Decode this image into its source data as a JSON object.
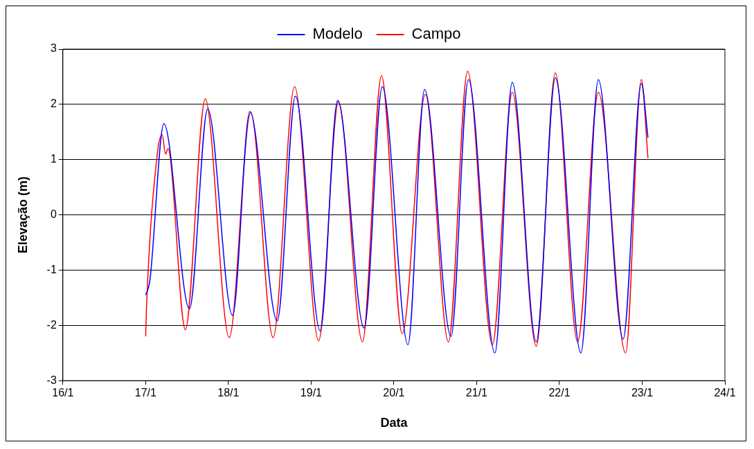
{
  "chart_data": {
    "type": "line",
    "xlabel": "Data",
    "ylabel": "Elevação (m)",
    "xlim": [
      "--01-16",
      "--01-24"
    ],
    "xticks": [
      {
        "value": "--01-16",
        "label": "16/1"
      },
      {
        "value": "--01-17",
        "label": "17/1"
      },
      {
        "value": "--01-18",
        "label": "18/1"
      },
      {
        "value": "--01-19",
        "label": "19/1"
      },
      {
        "value": "--01-20",
        "label": "20/1"
      },
      {
        "value": "--01-21",
        "label": "21/1"
      },
      {
        "value": "--01-22",
        "label": "22/1"
      },
      {
        "value": "--01-23",
        "label": "23/1"
      },
      {
        "value": "--01-24",
        "label": "24/1"
      }
    ],
    "ylim": [
      -3,
      3
    ],
    "yticks": [
      -3,
      -2,
      -1,
      0,
      1,
      2,
      3
    ],
    "grid": "y",
    "legend": "top",
    "marker": "none",
    "line_style": "solid",
    "series": [
      {
        "name": "Modelo",
        "color": "#0000ff",
        "x": [
          "--01-17T00:00",
          "--01-17T01:12",
          "--01-17T05:17",
          "--01-17T12:43",
          "--01-17T18:00",
          "--01-18T01:12",
          "--01-18T06:14",
          "--01-18T14:10",
          "--01-18T19:26",
          "--01-19T02:38",
          "--01-19T07:41",
          "--01-19T15:22",
          "--01-19T20:38",
          "--01-20T04:05",
          "--01-20T08:53",
          "--01-20T16:34",
          "--01-20T21:36",
          "--01-21T05:17",
          "--01-21T10:19",
          "--01-21T17:17",
          "--01-21T22:48",
          "--01-22T06:14",
          "--01-22T11:17",
          "--01-22T18:29",
          "--01-22T23:46",
          "--01-23T01:41"
        ],
        "values": [
          -1.45,
          -1.2,
          1.65,
          -1.7,
          1.92,
          -1.82,
          1.87,
          -1.92,
          2.15,
          -2.1,
          2.07,
          -2.05,
          2.32,
          -2.35,
          2.27,
          -2.2,
          2.45,
          -2.5,
          2.4,
          -2.3,
          2.48,
          -2.5,
          2.45,
          -2.25,
          2.38,
          1.4
        ]
      },
      {
        "name": "Campo",
        "color": "#ff0000",
        "x": [
          "--01-17T00:00",
          "--01-17T00:14",
          "--01-17T03:22",
          "--01-17T04:48",
          "--01-17T05:46",
          "--01-17T06:29",
          "--01-17T11:31",
          "--01-17T17:17",
          "--01-18T00:14",
          "--01-18T06:29",
          "--01-18T12:58",
          "--01-18T19:12",
          "--01-19T02:10",
          "--01-19T07:55",
          "--01-19T14:53",
          "--01-19T20:24",
          "--01-20T02:24",
          "--01-20T09:07",
          "--01-20T15:50",
          "--01-20T21:22",
          "--01-21T04:34",
          "--01-21T10:19",
          "--01-21T17:17",
          "--01-21T22:48",
          "--01-22T05:17",
          "--01-22T11:17",
          "--01-22T19:12",
          "--01-22T23:46",
          "--01-23T01:41"
        ],
        "values": [
          -2.2,
          -1.7,
          1.1,
          1.45,
          1.1,
          1.2,
          -2.08,
          2.1,
          -2.22,
          1.85,
          -2.22,
          2.32,
          -2.28,
          2.05,
          -2.3,
          2.52,
          -2.15,
          2.18,
          -2.3,
          2.6,
          -2.35,
          2.22,
          -2.38,
          2.57,
          -2.3,
          2.22,
          -2.5,
          2.45,
          1.03
        ]
      }
    ]
  }
}
